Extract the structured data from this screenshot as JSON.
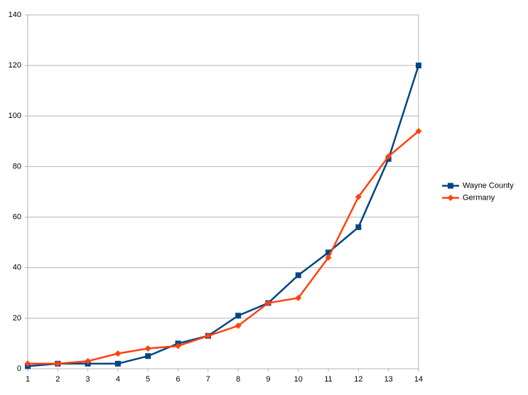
{
  "chart_data": {
    "type": "line",
    "x": [
      1,
      2,
      3,
      4,
      5,
      6,
      7,
      8,
      9,
      10,
      11,
      12,
      13,
      14
    ],
    "series": [
      {
        "name": "Wayne County",
        "color": "#004586",
        "marker": "square",
        "values": [
          1,
          2,
          2,
          2,
          5,
          10,
          13,
          21,
          26,
          37,
          46,
          56,
          83,
          120
        ]
      },
      {
        "name": "Germany",
        "color": "#ff420e",
        "marker": "diamond",
        "values": [
          2,
          2,
          3,
          6,
          8,
          9,
          13,
          17,
          26,
          28,
          44,
          68,
          84,
          94
        ]
      }
    ],
    "xlim": [
      1,
      14
    ],
    "xticks": [
      1,
      2,
      3,
      4,
      5,
      6,
      7,
      8,
      9,
      10,
      11,
      12,
      13,
      14
    ],
    "ylim": [
      0,
      140
    ],
    "yticks": [
      0,
      20,
      40,
      60,
      80,
      100,
      120,
      140
    ],
    "grid": true,
    "legend": "right"
  }
}
